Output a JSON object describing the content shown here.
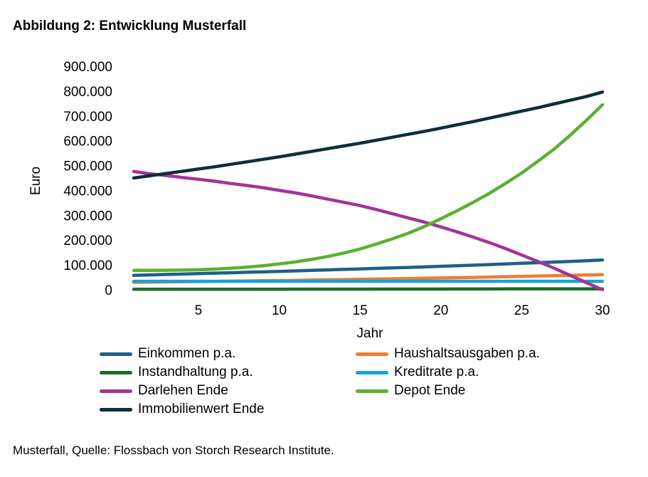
{
  "title": "Abbildung 2: Entwicklung Musterfall",
  "caption": "Musterfall, Quelle: Flossbach von Storch Research Institute.",
  "chart_data": {
    "type": "line",
    "xlabel": "Jahr",
    "ylabel": "Euro",
    "xlim": [
      1,
      30
    ],
    "ylim": [
      0,
      900000
    ],
    "xticks": [
      5,
      10,
      15,
      20,
      25,
      30
    ],
    "yticks": [
      0,
      100000,
      200000,
      300000,
      400000,
      500000,
      600000,
      700000,
      800000,
      900000
    ],
    "ytick_labels": [
      "0",
      "100.000",
      "200.000",
      "300.000",
      "400.000",
      "500.000",
      "600.000",
      "700.000",
      "800.000",
      "900.000"
    ],
    "grid": false,
    "legend_position": "bottom",
    "x": [
      1,
      2,
      3,
      4,
      5,
      6,
      7,
      8,
      9,
      10,
      11,
      12,
      13,
      14,
      15,
      16,
      17,
      18,
      19,
      20,
      21,
      22,
      23,
      24,
      25,
      26,
      27,
      28,
      29,
      30
    ],
    "series": [
      {
        "name": "Einkommen p.a.",
        "color": "#1f5f87",
        "values": [
          58000,
          60000,
          61500,
          63000,
          65000,
          67000,
          68500,
          70500,
          72000,
          74000,
          76000,
          78000,
          80000,
          82000,
          84000,
          86000,
          88000,
          90000,
          92000,
          94500,
          96500,
          99000,
          101500,
          104000,
          106500,
          109000,
          111500,
          114000,
          117000,
          120000
        ]
      },
      {
        "name": "Haushaltsausgaben p.a.",
        "color": "#ee7d31",
        "values": [
          30000,
          30800,
          31500,
          32300,
          33000,
          33800,
          34700,
          35500,
          36400,
          37300,
          38200,
          39200,
          40100,
          41100,
          42100,
          43200,
          44200,
          45300,
          46500,
          47600,
          48800,
          50000,
          51300,
          52600,
          53900,
          55200,
          56600,
          58000,
          59500,
          61000
        ]
      },
      {
        "name": "Instandhaltung p.a.",
        "color": "#1c6b2a",
        "values": [
          2000,
          2000,
          2100,
          2100,
          2200,
          2200,
          2300,
          2300,
          2400,
          2400,
          2500,
          2500,
          2600,
          2600,
          2700,
          2800,
          2800,
          2900,
          2900,
          3000,
          3100,
          3100,
          3200,
          3300,
          3300,
          3400,
          3500,
          3600,
          3600,
          3700
        ]
      },
      {
        "name": "Kreditrate p.a.",
        "color": "#15a3dc",
        "values": [
          34000,
          34000,
          34000,
          34000,
          34000,
          34000,
          34000,
          34000,
          34000,
          34000,
          34000,
          34000,
          34000,
          34000,
          34000,
          34000,
          34000,
          34000,
          34000,
          34000,
          34000,
          34000,
          34000,
          34000,
          34000,
          34000,
          34000,
          34000,
          34000,
          34000
        ]
      },
      {
        "name": "Darlehen Ende",
        "color": "#a23497",
        "values": [
          476000,
          467000,
          460000,
          452000,
          445000,
          437000,
          428000,
          420000,
          411000,
          400000,
          390000,
          378000,
          365000,
          352000,
          339000,
          323000,
          306000,
          289000,
          272000,
          253000,
          233000,
          212000,
          190000,
          166000,
          140000,
          114000,
          87000,
          58000,
          29000,
          0
        ]
      },
      {
        "name": "Depot Ende",
        "color": "#5bb030",
        "values": [
          78000,
          78000,
          78500,
          79000,
          80500,
          83000,
          86500,
          91000,
          97000,
          104000,
          112000,
          122000,
          134000,
          148000,
          164000,
          184000,
          205000,
          228000,
          255000,
          286000,
          318000,
          352000,
          388000,
          428000,
          470000,
          517000,
          566000,
          622000,
          682000,
          745000
        ]
      },
      {
        "name": "Immobilienwert Ende",
        "color": "#0f2d3d",
        "values": [
          450000,
          459000,
          468000,
          477000,
          486000,
          495000,
          505000,
          515000,
          525000,
          535000,
          546000,
          557000,
          568000,
          579000,
          590000,
          602000,
          614000,
          626000,
          638000,
          651000,
          664000,
          677000,
          691000,
          705000,
          719000,
          733000,
          748000,
          763000,
          778000,
          796000
        ]
      }
    ]
  }
}
